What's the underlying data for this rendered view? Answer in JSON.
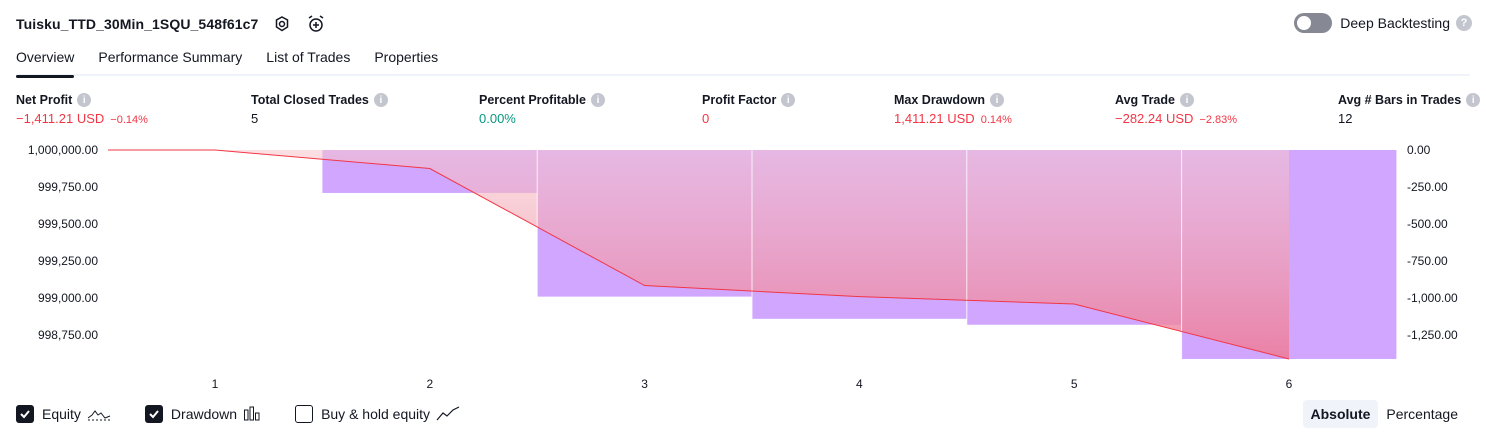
{
  "header": {
    "title": "Tuisku_TTD_30Min_1SQU_548f61c7",
    "settings_icon": "gear-icon",
    "alert_icon": "alarm-clock-plus-icon"
  },
  "deep_backtesting": {
    "label": "Deep Backtesting",
    "enabled": false,
    "help": "?"
  },
  "tabs": [
    {
      "label": "Overview",
      "active": true
    },
    {
      "label": "Performance Summary",
      "active": false
    },
    {
      "label": "List of Trades",
      "active": false
    },
    {
      "label": "Properties",
      "active": false
    }
  ],
  "metrics": [
    {
      "label": "Net Profit",
      "value": "−1,411.21 USD",
      "pct": "−0.14%",
      "color": "#f23645"
    },
    {
      "label": "Total Closed Trades",
      "value": "5",
      "pct": "",
      "color": "#131722"
    },
    {
      "label": "Percent Profitable",
      "value": "0.00%",
      "pct": "",
      "color": "#089981"
    },
    {
      "label": "Profit Factor",
      "value": "0",
      "pct": "",
      "color": "#f23645"
    },
    {
      "label": "Max Drawdown",
      "value": "1,411.21 USD",
      "pct": "0.14%",
      "color": "#f23645"
    },
    {
      "label": "Avg Trade",
      "value": "−282.24 USD",
      "pct": "−2.83%",
      "color": "#f23645"
    },
    {
      "label": "Avg # Bars in Trades",
      "value": "12",
      "pct": "",
      "color": "#131722"
    }
  ],
  "info_icon": "i",
  "chart_data": {
    "type": "line",
    "x": [
      1,
      2,
      3,
      4,
      5,
      6
    ],
    "x_ticks": [
      "1",
      "2",
      "3",
      "4",
      "5",
      "6"
    ],
    "y_left_ticks": [
      "1,000,000.00",
      "999,750.00",
      "999,500.00",
      "999,250.00",
      "999,000.00",
      "998,750.00"
    ],
    "y_right_ticks": [
      "0.00",
      "-250.00",
      "-500.00",
      "-750.00",
      "-1,000.00",
      "-1,250.00"
    ],
    "ylim_left": [
      998588.79,
      1000000
    ],
    "ylim_right": [
      -1411.21,
      0
    ],
    "series": [
      {
        "name": "Equity",
        "values": [
          1000000,
          999875,
          999085,
          999010,
          998960,
          998588.79
        ],
        "color": "#f23645"
      },
      {
        "name": "Drawdown",
        "values": [
          0,
          -290,
          -990,
          -1140,
          -1180,
          -1411.21
        ],
        "color": "#d1a6ff"
      }
    ],
    "legend": [
      {
        "label": "Equity",
        "checked": true,
        "icon": "equity-line-icon"
      },
      {
        "label": "Drawdown",
        "checked": true,
        "icon": "drawdown-bars-icon"
      },
      {
        "label": "Buy & hold equity",
        "checked": false,
        "icon": "buy-hold-line-icon"
      }
    ],
    "modes": [
      {
        "label": "Absolute",
        "active": true
      },
      {
        "label": "Percentage",
        "active": false
      }
    ]
  }
}
